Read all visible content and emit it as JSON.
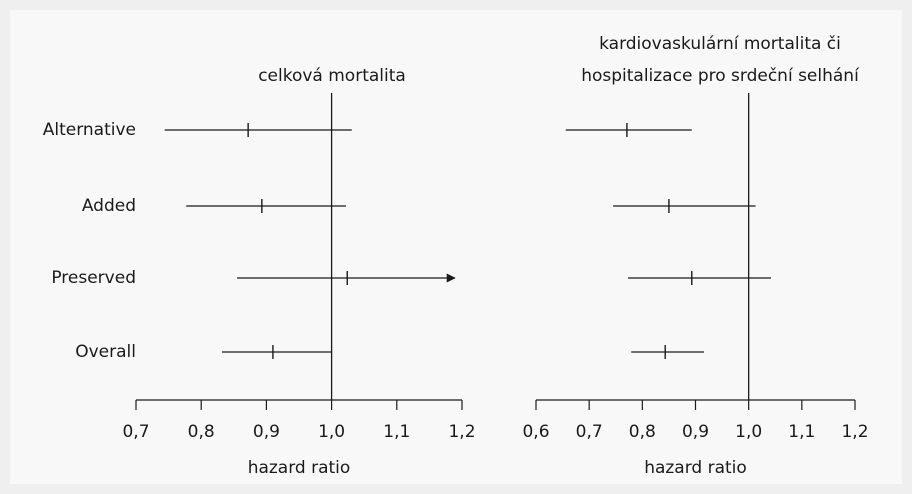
{
  "chart_data": [
    {
      "type": "forest",
      "title": [
        "celková mortalita"
      ],
      "xlabel": "hazard ratio",
      "categories": [
        "Alternative",
        "Added",
        "Preserved",
        "Overall"
      ],
      "values": [
        0.872,
        0.893,
        1.024,
        0.91
      ],
      "lower": [
        0.744,
        0.777,
        0.855,
        0.832
      ],
      "upper": [
        1.031,
        1.022,
        1.189,
        1.0
      ],
      "open_upper": [
        false,
        false,
        true,
        false
      ],
      "reference": 1,
      "color": "#1a1a1a",
      "xlim": [
        0.7,
        1.2
      ],
      "xticks": [
        {
          "value": 0.7,
          "label": "0,7"
        },
        {
          "value": 0.8,
          "label": "0,8"
        },
        {
          "value": 0.9,
          "label": "0,9"
        },
        {
          "value": 1.0,
          "label": "1,0"
        },
        {
          "value": 1.1,
          "label": "1,1"
        },
        {
          "value": 1.2,
          "label": "1,2"
        }
      ]
    },
    {
      "type": "forest",
      "title": [
        "kardiovaskulární mortalita či",
        "hospitalizace pro srdeční selhání"
      ],
      "xlabel": "hazard ratio",
      "categories": [
        null,
        null,
        null,
        null
      ],
      "values": [
        0.771,
        0.85,
        0.893,
        0.843
      ],
      "lower": [
        0.656,
        0.745,
        0.773,
        0.779
      ],
      "upper": [
        0.893,
        1.013,
        1.042,
        0.916
      ],
      "open_upper": [
        false,
        false,
        false,
        false
      ],
      "reference": 1,
      "color": "#1a1a1a",
      "xlim": [
        0.6,
        1.2
      ],
      "xticks": [
        {
          "value": 0.6,
          "label": "0,6"
        },
        {
          "value": 0.7,
          "label": "0,7"
        },
        {
          "value": 0.8,
          "label": "0,8"
        },
        {
          "value": 0.9,
          "label": "0,9"
        },
        {
          "value": 1.0,
          "label": "1,0"
        },
        {
          "value": 1.1,
          "label": "1,1"
        },
        {
          "value": 1.2,
          "label": "1,2"
        }
      ]
    }
  ]
}
